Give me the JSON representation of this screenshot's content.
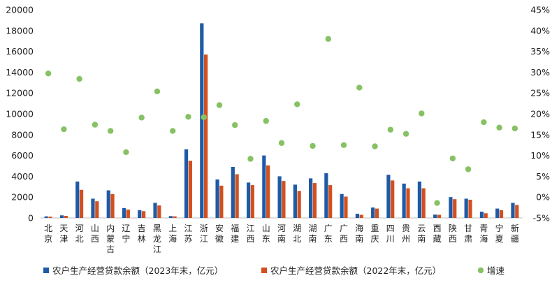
{
  "chart_data": {
    "type": "bar",
    "categories": [
      "北京",
      "天津",
      "河北",
      "山西",
      "内蒙古",
      "辽宁",
      "吉林",
      "黑龙江",
      "上海",
      "江苏",
      "浙江",
      "安徽",
      "福建",
      "江西",
      "山东",
      "河南",
      "湖北",
      "湖南",
      "广东",
      "广西",
      "海南",
      "重庆",
      "四川",
      "贵州",
      "云南",
      "西藏",
      "陕西",
      "甘肃",
      "青海",
      "宁夏",
      "新疆"
    ],
    "series": [
      {
        "name": "农户生产经营贷款余额（2023年末，亿元）",
        "axis": "left",
        "kind": "bar",
        "color": "#1f5aa6",
        "values": [
          150,
          250,
          3500,
          1850,
          2650,
          950,
          750,
          1450,
          180,
          6600,
          18700,
          3700,
          4900,
          3400,
          6000,
          4000,
          3200,
          3800,
          4300,
          2300,
          400,
          1000,
          4150,
          3300,
          3500,
          320,
          2000,
          1850,
          600,
          900,
          1450
        ]
      },
      {
        "name": "农户生产经营贷款余额（2022年末，亿元）",
        "axis": "left",
        "kind": "bar",
        "color": "#d1501f",
        "values": [
          120,
          200,
          2700,
          1600,
          2300,
          800,
          650,
          1200,
          150,
          5500,
          15700,
          3100,
          4200,
          3150,
          5050,
          3550,
          2600,
          3350,
          3150,
          2050,
          300,
          900,
          3600,
          2850,
          2850,
          300,
          1800,
          1750,
          450,
          750,
          1250
        ]
      },
      {
        "name": "增速",
        "axis": "right",
        "kind": "scatter",
        "color": "#86c264",
        "values": [
          29.7,
          16.3,
          28.4,
          17.4,
          15.9,
          10.8,
          19.1,
          25.4,
          15.9,
          19.3,
          19.2,
          22.1,
          17.3,
          9.2,
          18.3,
          13.0,
          22.3,
          12.3,
          38.0,
          12.5,
          26.3,
          12.2,
          16.2,
          15.2,
          20.1,
          -1.4,
          9.3,
          6.7,
          18.0,
          16.7,
          16.5
        ]
      }
    ],
    "ylim_left": [
      0,
      20000
    ],
    "yticks_left": [
      "0",
      "2000",
      "4000",
      "6000",
      "8000",
      "10000",
      "12000",
      "14000",
      "16000",
      "18000",
      "20000"
    ],
    "ylim_right": [
      -5,
      45
    ],
    "yticks_right": [
      "-5%",
      "0%",
      "5%",
      "10%",
      "15%",
      "20%",
      "25%",
      "30%",
      "35%",
      "40%",
      "45%"
    ],
    "grid": false,
    "legend_position": "bottom"
  }
}
